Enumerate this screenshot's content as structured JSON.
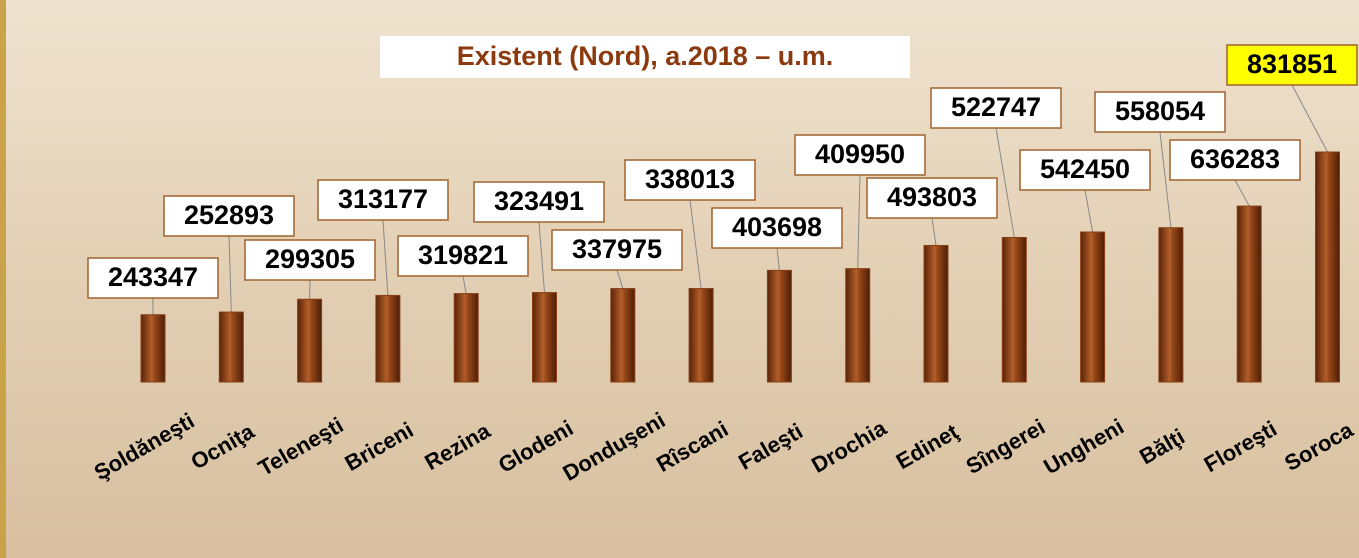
{
  "chart_data": {
    "type": "bar",
    "title": "Existent (Nord), a.2018 – u.m.",
    "categories": [
      "Şoldăneşti",
      "Ocniţa",
      "Teleneşti",
      "Briceni",
      "Rezina",
      "Glodeni",
      "Donduşeni",
      "Rîscani",
      "Faleşti",
      "Drochia",
      "Edineţ",
      "Sîngerei",
      "Ungheni",
      "Bălţi",
      "Floreşti",
      "Soroca"
    ],
    "values": [
      243347,
      252893,
      299305,
      313177,
      319821,
      323491,
      337975,
      338013,
      403698,
      409950,
      493803,
      522747,
      542450,
      558054,
      636283,
      831851
    ],
    "color": "#8a3f14"
  }
}
